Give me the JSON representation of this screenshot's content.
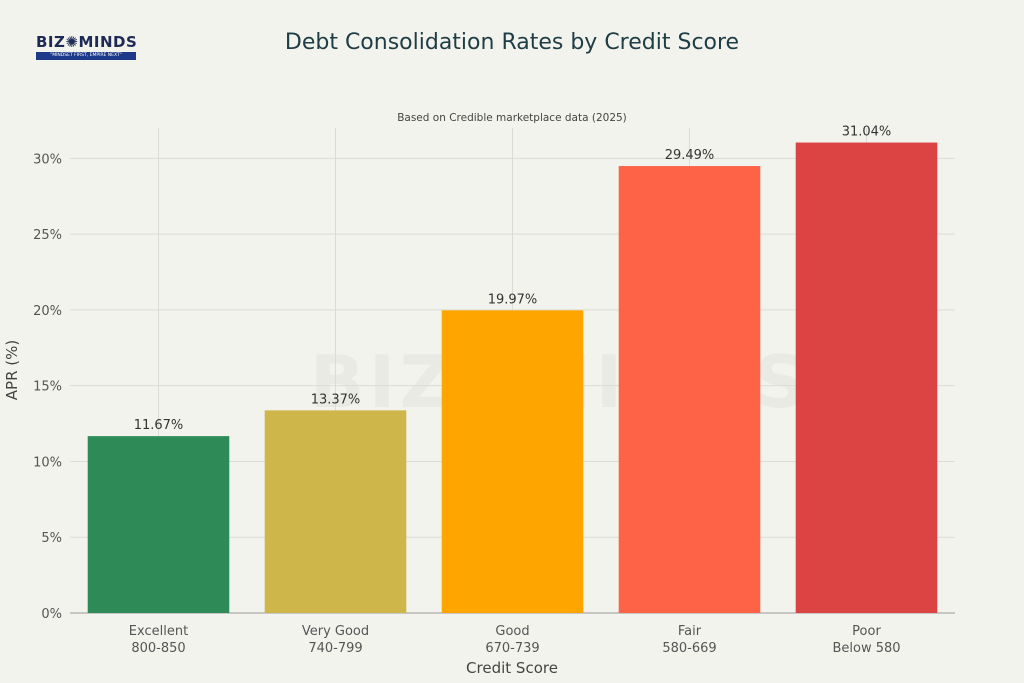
{
  "logo": {
    "brand": "BIZ✺MINDS",
    "tagline": "\"MINDSET FIRST, EMPIRE NEXT\""
  },
  "watermark": "BIZ✺MINDS",
  "colors": {
    "background": "#f3f3ee",
    "grid": "#dcdcd6",
    "text": "#555555",
    "title": "#1f3d45"
  },
  "chart_data": {
    "type": "bar",
    "title": "Debt Consolidation Rates by Credit Score",
    "subtitle": "Based on Credible marketplace data (2025)",
    "xlabel": "Credit Score",
    "ylabel": "APR (%)",
    "ylim": [
      0,
      32
    ],
    "yticks": [
      {
        "value": 0,
        "label": "0%"
      },
      {
        "value": 5,
        "label": "5%"
      },
      {
        "value": 10,
        "label": "10%"
      },
      {
        "value": 15,
        "label": "15%"
      },
      {
        "value": 20,
        "label": "20%"
      },
      {
        "value": 25,
        "label": "25%"
      },
      {
        "value": 30,
        "label": "30%"
      }
    ],
    "grid": true,
    "categories": [
      [
        "Excellent",
        "800-850"
      ],
      [
        "Very Good",
        "740-799"
      ],
      [
        "Good",
        "670-739"
      ],
      [
        "Fair",
        "580-669"
      ],
      [
        "Poor",
        "Below 580"
      ]
    ],
    "values": [
      11.67,
      13.37,
      19.97,
      29.49,
      31.04
    ],
    "data_labels": [
      "11.67%",
      "13.37%",
      "19.97%",
      "29.49%",
      "31.04%"
    ],
    "colors": [
      "#2e8b57",
      "#cfb64a",
      "#ffa500",
      "#ff6347",
      "#dc4444"
    ]
  }
}
